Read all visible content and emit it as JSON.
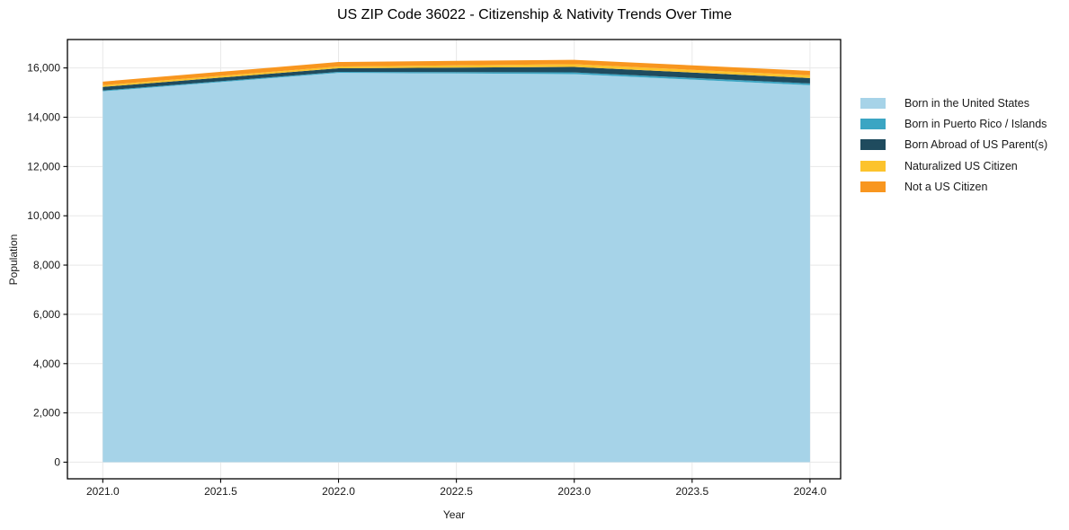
{
  "chart_data": {
    "type": "area",
    "stacked": true,
    "title": "US ZIP Code 36022 - Citizenship & Nativity Trends Over Time",
    "xlabel": "Year",
    "ylabel": "Population",
    "x": [
      2021,
      2022,
      2023,
      2024
    ],
    "series": [
      {
        "name": "Born in the United States",
        "color": "#a6d3e8",
        "values": [
          15050,
          15800,
          15750,
          15300
        ]
      },
      {
        "name": "Born in Puerto Rico / Islands",
        "color": "#3ba5c3",
        "values": [
          35,
          40,
          70,
          70
        ]
      },
      {
        "name": "Born Abroad of US Parent(s)",
        "color": "#1f4b5e",
        "values": [
          145,
          145,
          220,
          220
        ]
      },
      {
        "name": "Naturalized US Citizen",
        "color": "#fcc32d",
        "values": [
          70,
          75,
          110,
          110
        ]
      },
      {
        "name": "Not a US Citizen",
        "color": "#f8961f",
        "values": [
          145,
          180,
          180,
          180
        ]
      }
    ],
    "totals": [
      15445,
      16240,
      16330,
      15880
    ],
    "x_ticks": [
      2021.0,
      2021.5,
      2022.0,
      2022.5,
      2023.0,
      2023.5,
      2024.0
    ],
    "y_ticks": [
      0,
      2000,
      4000,
      6000,
      8000,
      10000,
      12000,
      14000,
      16000
    ],
    "xlim": [
      2020.85,
      2024.13
    ],
    "ylim": [
      -674,
      17153
    ],
    "grid": true,
    "legend_position": "outside-right-top"
  },
  "style": {
    "grid_color": "#e8e8e8",
    "frame_color": "#000000",
    "text_color": "#191919",
    "background": "#ffffff"
  }
}
